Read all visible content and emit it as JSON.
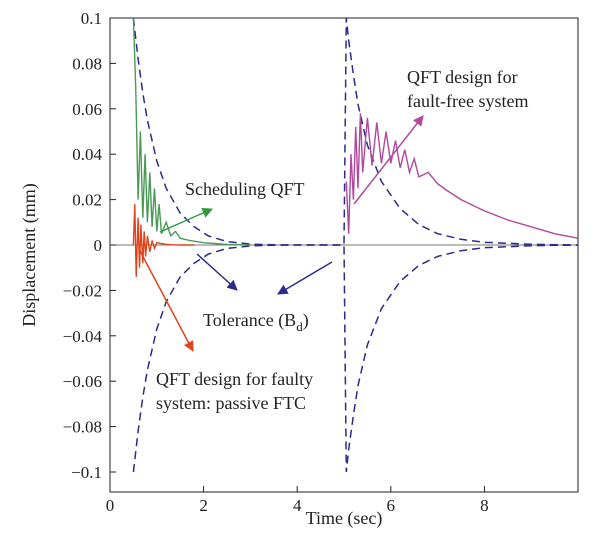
{
  "chart_data": {
    "type": "line",
    "xlabel": "Time (sec)",
    "ylabel": "Displacement (mm)",
    "xlim": [
      0,
      10
    ],
    "ylim": [
      -0.105,
      0.105
    ],
    "x_ticks": [
      "0",
      "2",
      "4",
      "6",
      "8"
    ],
    "y_ticks": [
      "−0.1",
      "−0.08",
      "−0.06",
      "−0.04",
      "−0.02",
      "0",
      "0.02",
      "0.04",
      "0.06",
      "0.08",
      "0.1"
    ],
    "grid": false,
    "series": [
      {
        "role": "tolerance upper bound",
        "color": "#2b2b8c",
        "style": "dashed",
        "x": [
          0.5,
          0.6,
          0.7,
          0.8,
          1.0,
          1.2,
          1.5,
          1.8,
          2.1,
          2.5,
          3.0,
          3.5,
          4.0,
          4.5,
          5.0,
          5.05,
          5.1,
          5.2,
          5.3,
          5.5,
          5.8,
          6.2,
          6.6,
          7.0,
          7.5,
          8.0,
          9.0,
          10.0
        ],
        "y": [
          0.1,
          0.082,
          0.067,
          0.055,
          0.037,
          0.025,
          0.014,
          0.008,
          0.004,
          0.0015,
          0.0004,
          0.0001,
          0.0,
          0.0,
          0.0,
          0.1,
          0.09,
          0.075,
          0.062,
          0.044,
          0.028,
          0.016,
          0.009,
          0.005,
          0.0025,
          0.0012,
          0.0003,
          0.0
        ]
      },
      {
        "role": "tolerance lower bound",
        "color": "#2b2b8c",
        "style": "dashed",
        "x": [
          0.5,
          0.6,
          0.7,
          0.8,
          1.0,
          1.2,
          1.5,
          1.8,
          2.1,
          2.5,
          3.0,
          3.5,
          4.0,
          4.5,
          5.0,
          5.05,
          5.1,
          5.2,
          5.3,
          5.5,
          5.8,
          6.2,
          6.6,
          7.0,
          7.5,
          8.0,
          9.0,
          10.0
        ],
        "y": [
          -0.1,
          -0.082,
          -0.067,
          -0.055,
          -0.037,
          -0.025,
          -0.014,
          -0.008,
          -0.004,
          -0.0015,
          -0.0004,
          -0.0001,
          0.0,
          0.0,
          0.0,
          -0.1,
          -0.09,
          -0.075,
          -0.062,
          -0.044,
          -0.028,
          -0.016,
          -0.009,
          -0.005,
          -0.0025,
          -0.0012,
          -0.0003,
          0.0
        ]
      },
      {
        "role": "QFT design for fault-free system",
        "color": "#b0489e",
        "style": "solid",
        "x": [
          5.05,
          5.1,
          5.15,
          5.2,
          5.25,
          5.3,
          5.35,
          5.4,
          5.5,
          5.6,
          5.7,
          5.8,
          5.9,
          6.0,
          6.1,
          6.2,
          6.3,
          6.4,
          6.5,
          6.6,
          6.8,
          7.0,
          7.2,
          7.5,
          8.0,
          8.5,
          9.0,
          9.5,
          10.0
        ],
        "y": [
          0.028,
          0.005,
          0.04,
          0.02,
          0.052,
          0.025,
          0.058,
          0.032,
          0.056,
          0.035,
          0.054,
          0.036,
          0.05,
          0.036,
          0.046,
          0.034,
          0.042,
          0.032,
          0.038,
          0.03,
          0.032,
          0.027,
          0.024,
          0.02,
          0.015,
          0.011,
          0.008,
          0.005,
          0.003
        ]
      },
      {
        "role": "scheduling QFT (first disturbance)",
        "color": "#4a9a56",
        "style": "solid",
        "x": [
          0.5,
          0.55,
          0.6,
          0.65,
          0.7,
          0.75,
          0.8,
          0.85,
          0.9,
          0.95,
          1.0,
          1.05,
          1.1,
          1.2,
          1.3,
          1.4,
          1.5,
          1.7,
          2.0,
          2.5,
          3.0
        ],
        "y": [
          0.1,
          0.07,
          0.02,
          0.05,
          0.012,
          0.04,
          0.01,
          0.032,
          0.008,
          0.025,
          0.006,
          0.018,
          0.005,
          0.01,
          0.004,
          0.006,
          0.003,
          0.002,
          0.001,
          0.0002,
          0.0
        ]
      },
      {
        "role": "QFT design for faulty system: passive FTC",
        "color": "#e0441c",
        "style": "solid",
        "x": [
          0.5,
          0.53,
          0.56,
          0.6,
          0.63,
          0.66,
          0.7,
          0.73,
          0.76,
          0.8,
          0.85,
          0.9,
          0.95,
          1.0,
          1.1,
          1.2,
          1.35,
          1.5,
          1.8
        ],
        "y": [
          0.0,
          0.018,
          -0.014,
          0.012,
          -0.01,
          0.009,
          -0.008,
          0.006,
          -0.005,
          0.004,
          -0.003,
          0.002,
          -0.0015,
          0.001,
          0.0006,
          0.0003,
          0.0001,
          0.0,
          0.0
        ]
      }
    ],
    "annotations": [
      {
        "text": "Scheduling QFT"
      },
      {
        "text": "Tolerance (B",
        "subscript": "d",
        "suffix": ")"
      },
      {
        "text": "QFT design for"
      },
      {
        "text": "fault-free system"
      },
      {
        "text": "QFT design for faulty"
      },
      {
        "text": "system: passive FTC"
      }
    ]
  }
}
